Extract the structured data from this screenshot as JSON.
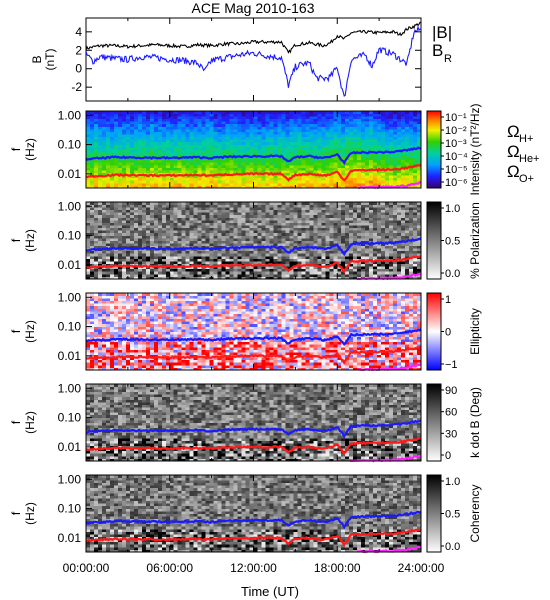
{
  "chart_data": {
    "type": "line",
    "title": "ACE Mag 2010-163",
    "xlabel": "Time (UT)",
    "x_ticks": [
      "00:00:00",
      "06:00:00",
      "12:00:00",
      "18:00:00",
      "24:00:00"
    ],
    "xlim_hours": [
      0,
      24
    ],
    "colors": {
      "black": "#000000",
      "blue": "#1a1aff",
      "red": "#ff1a1a",
      "magenta": "#ff22ff"
    },
    "panels": [
      {
        "id": "b-field",
        "ylabel": [
          "B",
          "(nT)"
        ],
        "ylim": [
          -3.5,
          5.5
        ],
        "y_ticks": [
          "-2",
          "0",
          "2",
          "4"
        ],
        "y_tick_values": [
          -2,
          0,
          2,
          4
        ],
        "series": [
          {
            "name": "|B|",
            "color": "#000000",
            "x": [
              0,
              1,
              2,
              3,
              4,
              5,
              6,
              7,
              8,
              9,
              10,
              11,
              12,
              13,
              14,
              14.5,
              15,
              16,
              17,
              17.5,
              18,
              18.5,
              19,
              20,
              21,
              22,
              22.5,
              23,
              23.5,
              24
            ],
            "y": [
              2.2,
              2.5,
              2.5,
              2.4,
              2.5,
              2.6,
              2.5,
              2.4,
              2.6,
              2.5,
              2.7,
              2.7,
              2.9,
              2.9,
              2.9,
              1.7,
              2.6,
              2.8,
              2.5,
              2.8,
              3.6,
              3.2,
              3.9,
              4.0,
              3.9,
              4.0,
              3.7,
              4.3,
              4.6,
              5.0
            ]
          },
          {
            "name": "B_R",
            "color": "#1a1aff",
            "x": [
              0,
              0.5,
              1,
              2,
              3,
              4,
              5,
              6,
              7,
              8,
              8.5,
              9,
              10,
              11,
              12,
              13,
              14,
              14.5,
              15,
              15.5,
              16,
              16.5,
              17,
              17.5,
              18,
              18.5,
              19,
              20,
              20.5,
              21,
              22,
              23,
              23.5,
              24
            ],
            "y": [
              1.6,
              0.8,
              1.3,
              1.1,
              1.0,
              1.3,
              1.2,
              1.0,
              0.9,
              0.6,
              -0.3,
              0.9,
              1.2,
              1.5,
              1.7,
              1.4,
              1.2,
              -1.8,
              0.2,
              0.5,
              0.6,
              -1.0,
              -1.1,
              -0.9,
              0.2,
              -3.2,
              1.0,
              1.5,
              0.3,
              2.1,
              1.6,
              0.5,
              4.0,
              4.3
            ]
          }
        ],
        "legend": [
          {
            "text": "|B|",
            "sub": "",
            "color": "#000000"
          },
          {
            "text": "B",
            "sub": "R",
            "color": "#1a1aff"
          }
        ]
      },
      {
        "id": "intensity",
        "ylabel": [
          "f",
          "(Hz)"
        ],
        "colorbar_label": "Intensity (nT²/Hz)",
        "colorbar_ticks": [
          "10⁻¹",
          "10⁻²",
          "10⁻³",
          "10⁻⁴",
          "10⁻⁵",
          "10⁻⁶"
        ],
        "colormap": "rainbow"
      },
      {
        "id": "polarization",
        "ylabel": [
          "f",
          "(Hz)"
        ],
        "colorbar_label": "% Polarization",
        "colorbar_ticks": [
          "1.0",
          "0.5",
          "0.0"
        ],
        "colormap": "gray"
      },
      {
        "id": "ellipticity",
        "ylabel": [
          "f",
          "(Hz)"
        ],
        "colorbar_label": "Ellipticity",
        "colorbar_ticks": [
          "1",
          "0",
          "−1"
        ],
        "colormap": "bwr"
      },
      {
        "id": "k-dot-b",
        "ylabel": [
          "f",
          "(Hz)"
        ],
        "colorbar_label": "k dot B (Deg)",
        "colorbar_ticks": [
          "90",
          "60",
          "30",
          "0"
        ],
        "colormap": "gray"
      },
      {
        "id": "coherency",
        "ylabel": [
          "f",
          "(Hz)"
        ],
        "colorbar_label": "Coherency",
        "colorbar_ticks": [
          "1.0",
          "0.5",
          "0.0"
        ],
        "colormap": "gray"
      }
    ],
    "freq_ticks": [
      "1.00",
      "0.10",
      "0.01"
    ],
    "freq_tick_values": [
      1.0,
      0.1,
      0.01
    ],
    "freq_ylim": [
      0.0033,
      1.4
    ],
    "gyro_lines": [
      {
        "name": "ΩH+",
        "label_main": "Ω",
        "label_sub": "H+",
        "color": "#1a1aff",
        "x": [
          0,
          2,
          4,
          6,
          8,
          9,
          10,
          12,
          13,
          14,
          14.5,
          15,
          16,
          17,
          17.5,
          18,
          18.5,
          19,
          20,
          21,
          22,
          23,
          24
        ],
        "y": [
          0.032,
          0.037,
          0.036,
          0.035,
          0.037,
          0.035,
          0.038,
          0.04,
          0.04,
          0.04,
          0.026,
          0.037,
          0.04,
          0.035,
          0.038,
          0.047,
          0.024,
          0.052,
          0.054,
          0.055,
          0.056,
          0.065,
          0.078
        ]
      },
      {
        "name": "ΩHe+",
        "label_main": "Ω",
        "label_sub": "He+",
        "color": "#ff1a1a",
        "x": [
          0,
          2,
          4,
          6,
          8,
          9,
          10,
          12,
          13,
          14,
          14.5,
          15,
          16,
          17,
          17.5,
          18,
          18.5,
          19,
          20,
          21,
          22,
          23,
          24
        ],
        "y": [
          0.008,
          0.0092,
          0.009,
          0.0088,
          0.0092,
          0.0088,
          0.0095,
          0.01,
          0.01,
          0.01,
          0.0065,
          0.0093,
          0.01,
          0.0088,
          0.0095,
          0.0118,
          0.006,
          0.013,
          0.0135,
          0.0138,
          0.014,
          0.0162,
          0.0195
        ]
      },
      {
        "name": "ΩO+",
        "label_main": "Ω",
        "label_sub": "O+",
        "color": "#ff22ff",
        "x": [
          0,
          2,
          4,
          6,
          8,
          10,
          12,
          14,
          16,
          18,
          19,
          20,
          21,
          22,
          23,
          24
        ],
        "y": [
          0.002,
          0.0023,
          0.0022,
          0.0022,
          0.0023,
          0.0024,
          0.0025,
          0.0025,
          0.0025,
          0.0029,
          0.0032,
          0.0034,
          0.0035,
          0.0036,
          0.004,
          0.005
        ]
      }
    ]
  }
}
